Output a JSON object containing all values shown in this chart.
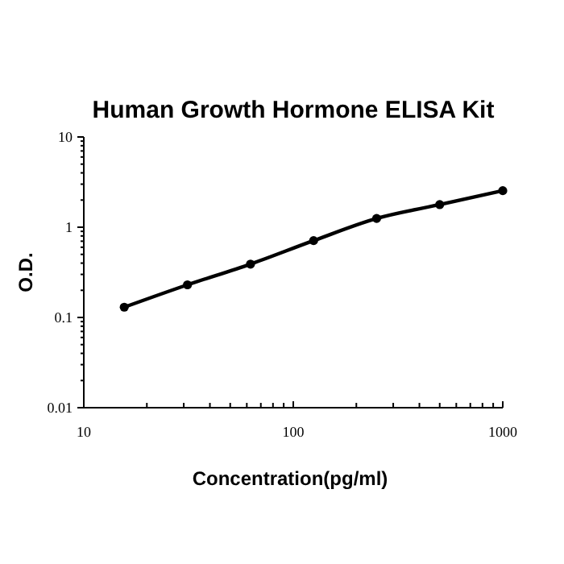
{
  "chart_data": {
    "type": "line",
    "title": "Human Growth Hormone ELISA Kit",
    "xlabel": "Concentration(pg/ml)",
    "ylabel": "O.D.",
    "x": [
      15.6,
      31.25,
      62.5,
      125,
      250,
      500,
      1000
    ],
    "series": [
      {
        "color": "#000000",
        "values": [
          0.13,
          0.23,
          0.39,
          0.71,
          1.25,
          1.78,
          2.54
        ]
      }
    ],
    "log": "xy",
    "xlim": [
      10,
      1000
    ],
    "ylim": [
      0.01,
      10
    ],
    "xticks": [
      10,
      {
        "value": 20,
        "label": null
      },
      {
        "value": 30,
        "label": null
      },
      {
        "value": 40,
        "label": null
      },
      {
        "value": 50,
        "label": null
      },
      {
        "value": 60,
        "label": null
      },
      {
        "value": 70,
        "label": null
      },
      {
        "value": 80,
        "label": null
      },
      {
        "value": 90,
        "label": null
      },
      100,
      {
        "value": 200,
        "label": null
      },
      {
        "value": 300,
        "label": null
      },
      {
        "value": 400,
        "label": null
      },
      {
        "value": 500,
        "label": null
      },
      {
        "value": 600,
        "label": null
      },
      {
        "value": 700,
        "label": null
      },
      {
        "value": 800,
        "label": null
      },
      {
        "value": 900,
        "label": null
      },
      1000
    ],
    "yticks": [
      0.01,
      {
        "value": 0.02,
        "label": null
      },
      {
        "value": 0.03,
        "label": null
      },
      {
        "value": 0.04,
        "label": null
      },
      {
        "value": 0.05,
        "label": null
      },
      {
        "value": 0.06,
        "label": null
      },
      {
        "value": 0.07,
        "label": null
      },
      {
        "value": 0.08,
        "label": null
      },
      {
        "value": 0.09,
        "label": null
      },
      0.1,
      {
        "value": 0.2,
        "label": null
      },
      {
        "value": 0.3,
        "label": null
      },
      {
        "value": 0.4,
        "label": null
      },
      {
        "value": 0.5,
        "label": null
      },
      {
        "value": 0.6,
        "label": null
      },
      {
        "value": 0.7,
        "label": null
      },
      {
        "value": 0.8,
        "label": null
      },
      {
        "value": 0.9,
        "label": null
      },
      1,
      {
        "value": 2,
        "label": null
      },
      {
        "value": 3,
        "label": null
      },
      {
        "value": 4,
        "label": null
      },
      {
        "value": 5,
        "label": null
      },
      {
        "value": 6,
        "label": null
      },
      {
        "value": 7,
        "label": null
      },
      {
        "value": 8,
        "label": null
      },
      {
        "value": 9,
        "label": null
      },
      10
    ],
    "marker": "circle",
    "line_style": "solid"
  }
}
